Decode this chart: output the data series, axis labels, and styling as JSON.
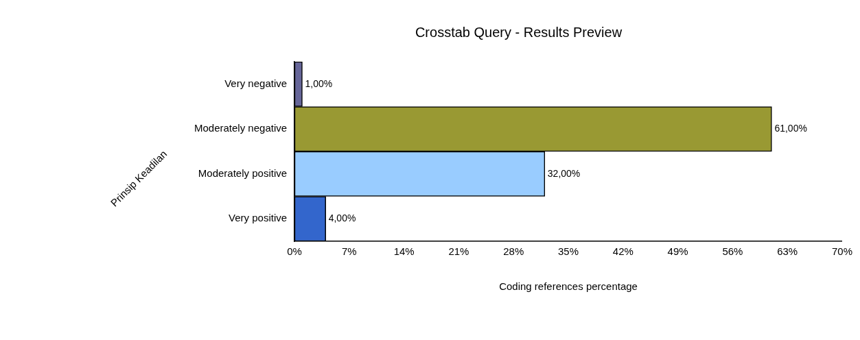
{
  "chart_data": {
    "type": "bar",
    "orientation": "horizontal",
    "title": "Crosstab Query - Results Preview",
    "xlabel": "Coding references percentage",
    "ylabel": "Prinsip Keadilan",
    "categories": [
      "Very negative",
      "Moderately negative",
      "Moderately positive",
      "Very positive"
    ],
    "values": [
      1,
      61,
      32,
      4
    ],
    "colors": [
      "#666699",
      "#999933",
      "#99ccff",
      "#3366cc"
    ],
    "value_labels": [
      "1,00%",
      "61,00%",
      "32,00%",
      "4,00%"
    ],
    "xlim": [
      0,
      70
    ],
    "xticks": [
      {
        "value": 0,
        "label": "0%"
      },
      {
        "value": 7,
        "label": "7%"
      },
      {
        "value": 14,
        "label": "14%"
      },
      {
        "value": 21,
        "label": "21%"
      },
      {
        "value": 28,
        "label": "28%"
      },
      {
        "value": 35,
        "label": "35%"
      },
      {
        "value": 42,
        "label": "42%"
      },
      {
        "value": 49,
        "label": "49%"
      },
      {
        "value": 56,
        "label": "56%"
      },
      {
        "value": 63,
        "label": "63%"
      },
      {
        "value": 70,
        "label": "70%"
      }
    ],
    "grid": false,
    "legend": false
  }
}
